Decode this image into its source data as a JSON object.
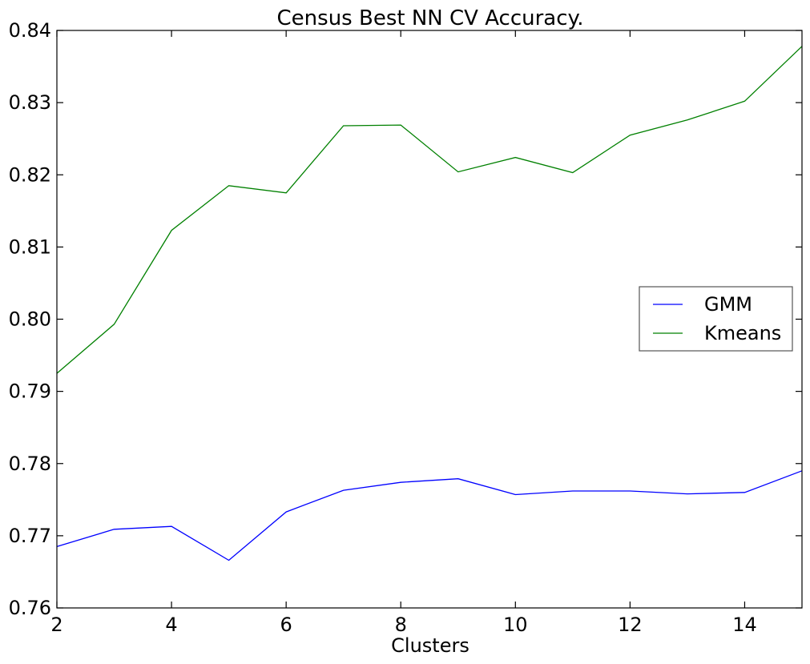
{
  "chart_data": {
    "type": "line",
    "title": "Census Best NN CV Accuracy.",
    "xlabel": "Clusters",
    "ylabel": "",
    "xlim": [
      2,
      15
    ],
    "ylim": [
      0.76,
      0.84
    ],
    "xticks": [
      2,
      4,
      6,
      8,
      10,
      12,
      14
    ],
    "xtick_labels": [
      "2",
      "4",
      "6",
      "8",
      "10",
      "12",
      "14"
    ],
    "yticks": [
      0.76,
      0.77,
      0.78,
      0.79,
      0.8,
      0.81,
      0.82,
      0.83,
      0.84
    ],
    "ytick_labels": [
      "0.76",
      "0.77",
      "0.78",
      "0.79",
      "0.80",
      "0.81",
      "0.82",
      "0.83",
      "0.84"
    ],
    "grid": false,
    "legend_position": "center-right",
    "x": [
      2,
      3,
      4,
      5,
      6,
      7,
      8,
      9,
      10,
      11,
      12,
      13,
      14,
      15
    ],
    "series": [
      {
        "name": "GMM",
        "color": "#0000ff",
        "values": [
          0.7685,
          0.7709,
          0.7713,
          0.7666,
          0.7733,
          0.7763,
          0.7774,
          0.7779,
          0.7757,
          0.7762,
          0.7762,
          0.7758,
          0.776,
          0.779
        ]
      },
      {
        "name": "Kmeans",
        "color": "#008000",
        "values": [
          0.7925,
          0.7993,
          0.8123,
          0.8185,
          0.8175,
          0.8268,
          0.8269,
          0.8204,
          0.8224,
          0.8203,
          0.8255,
          0.8276,
          0.8302,
          0.8378
        ]
      }
    ]
  }
}
